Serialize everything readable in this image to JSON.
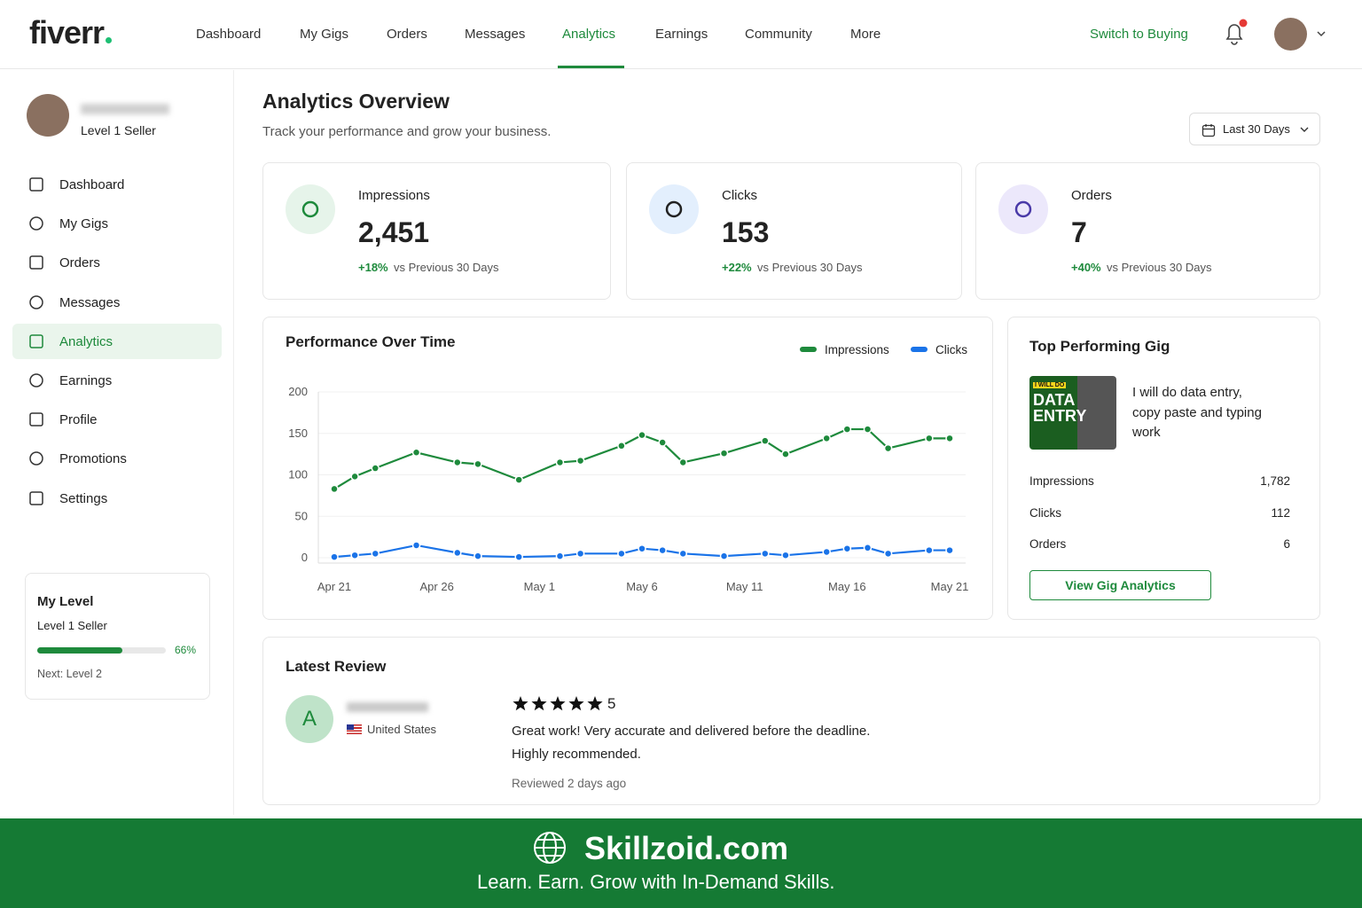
{
  "nav": {
    "logo": "fiverr",
    "items": [
      "Dashboard",
      "My Gigs",
      "Orders",
      "Messages",
      "Analytics",
      "Earnings",
      "Community",
      "More"
    ],
    "active": 4,
    "switch": "Switch to Buying"
  },
  "sidebar": {
    "level": "Level 1 Seller",
    "items": [
      "Dashboard",
      "My Gigs",
      "Orders",
      "Messages",
      "Analytics",
      "Earnings",
      "Profile",
      "Promotions",
      "Settings"
    ],
    "active": 4,
    "level_card": {
      "title": "My Level",
      "level": "Level 1 Seller",
      "progress": 66,
      "progress_label": "66%",
      "next": "Next: Level 2"
    }
  },
  "header": {
    "title": "Analytics Overview",
    "subtitle": "Track your performance and grow your business.",
    "date_filter": "Last 30 Days"
  },
  "stats": [
    {
      "label": "Impressions",
      "value": "2,451",
      "change": "+18%",
      "compare": "vs Previous 30 Days"
    },
    {
      "label": "Clicks",
      "value": "153",
      "change": "+22%",
      "compare": "vs Previous 30 Days"
    },
    {
      "label": "Orders",
      "value": "7",
      "change": "+40%",
      "compare": "vs Previous 30 Days"
    }
  ],
  "chart_data": {
    "type": "line",
    "title": "Performance Over Time",
    "x": [
      0,
      1,
      2,
      4,
      6,
      7,
      9,
      11,
      12,
      14,
      15,
      16,
      17,
      19,
      21,
      22,
      24,
      25,
      26,
      27,
      29,
      30
    ],
    "xlim": [
      0,
      30
    ],
    "xticks": [
      {
        "value": 0,
        "label": "Apr 21"
      },
      {
        "value": 5,
        "label": "Apr 26"
      },
      {
        "value": 10,
        "label": "May 1"
      },
      {
        "value": 15,
        "label": "May 6"
      },
      {
        "value": 20,
        "label": "May 11"
      },
      {
        "value": 25,
        "label": "May 16"
      },
      {
        "value": 30,
        "label": "May 21"
      }
    ],
    "ylim": [
      0,
      200
    ],
    "yticks": [
      0,
      50,
      100,
      150,
      200
    ],
    "grid": true,
    "series": [
      {
        "name": "Impressions",
        "color": "#1e8a3c",
        "values": [
          83,
          98,
          108,
          127,
          115,
          113,
          94,
          115,
          117,
          135,
          148,
          139,
          115,
          126,
          141,
          125,
          144,
          155,
          155,
          132,
          144,
          144
        ]
      },
      {
        "name": "Clicks",
        "color": "#1a73e8",
        "values": [
          1,
          3,
          5,
          15,
          6,
          2,
          1,
          2,
          5,
          5,
          11,
          9,
          5,
          2,
          5,
          3,
          7,
          11,
          12,
          5,
          9,
          9
        ]
      }
    ]
  },
  "top_gig": {
    "title": "Top Performing Gig",
    "thumb_kicker": "I WILL DO",
    "thumb_title": "DATA ENTRY",
    "description": "I will do data entry, copy paste and typing work",
    "rows": [
      [
        "Impressions",
        "1,782"
      ],
      [
        "Clicks",
        "112"
      ],
      [
        "Orders",
        "6"
      ]
    ],
    "button": "View Gig Analytics"
  },
  "review": {
    "title": "Latest Review",
    "avatar": "A",
    "country": "United States",
    "rating": 5,
    "text": "Great work! Very accurate and delivered before the deadline. Highly recommended.",
    "meta": "Reviewed 2 days ago"
  },
  "banner": {
    "title": "Skillzoid.com",
    "tagline": "Learn. Earn. Grow with In-Demand Skills."
  }
}
